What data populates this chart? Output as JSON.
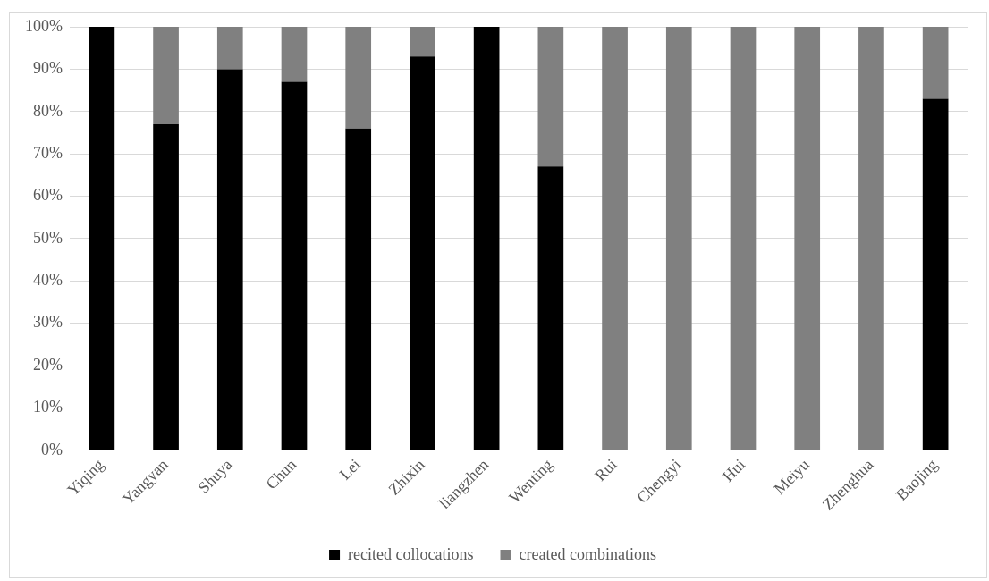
{
  "chart_data": {
    "type": "bar",
    "stacked": true,
    "categories": [
      "Yiqing",
      "Yangyan",
      "Shuya",
      "Chun",
      "Lei",
      "Zhixin",
      "liangzhen",
      "Wenting",
      "Rui",
      "Chengyi",
      "Hui",
      "Meiyu",
      "Zhenghua",
      "Baojing"
    ],
    "series": [
      {
        "name": "recited collocations",
        "color": "#000000",
        "values": [
          100,
          77,
          90,
          87,
          76,
          93,
          100,
          67,
          0,
          0,
          0,
          0,
          0,
          83
        ]
      },
      {
        "name": "created combinations",
        "color": "#808080",
        "values": [
          0,
          23,
          10,
          13,
          24,
          7,
          0,
          33,
          100,
          100,
          100,
          100,
          100,
          17
        ]
      }
    ],
    "ylim": [
      0,
      100
    ],
    "yticks": [
      {
        "value": 0,
        "label": "0%"
      },
      {
        "value": 10,
        "label": "10%"
      },
      {
        "value": 20,
        "label": "20%"
      },
      {
        "value": 30,
        "label": "30%"
      },
      {
        "value": 40,
        "label": "40%"
      },
      {
        "value": 50,
        "label": "50%"
      },
      {
        "value": 60,
        "label": "60%"
      },
      {
        "value": 70,
        "label": "70%"
      },
      {
        "value": 80,
        "label": "80%"
      },
      {
        "value": 90,
        "label": "90%"
      },
      {
        "value": 100,
        "label": "100%"
      }
    ],
    "grid": "y",
    "legend": "bottom"
  }
}
